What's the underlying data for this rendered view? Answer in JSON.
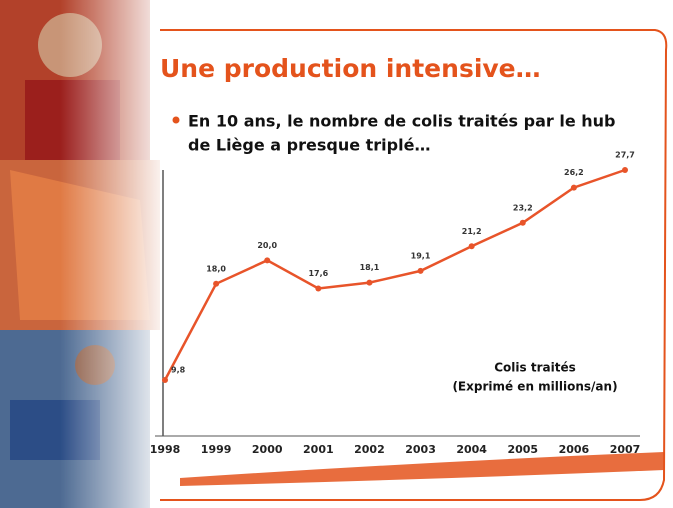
{
  "chart_data": {
    "type": "line",
    "title": "Une production intensive…",
    "subtitle_lines": [
      "En 10 ans, le nombre de colis traités par le hub",
      "de Liège a presque triplé…"
    ],
    "annotation_lines": [
      "Colis traités",
      "(Exprimé en millions/an)"
    ],
    "categories": [
      "1998",
      "1999",
      "2000",
      "2001",
      "2002",
      "2003",
      "2004",
      "2005",
      "2006",
      "2007"
    ],
    "values": [
      9.8,
      18.0,
      20.0,
      17.6,
      18.1,
      19.1,
      21.2,
      23.2,
      26.2,
      27.7
    ],
    "value_labels": [
      "9,8",
      "18,0",
      "20,0",
      "17,6",
      "18,1",
      "19,1",
      "21,2",
      "23,2",
      "26,2",
      "27,7"
    ],
    "color": "#e8542a"
  }
}
